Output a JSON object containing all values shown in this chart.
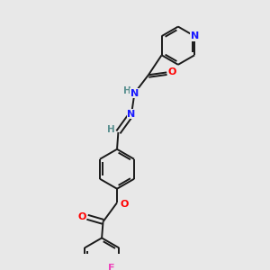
{
  "bg_color": "#e8e8e8",
  "bond_color": "#1a1a1a",
  "N_color": "#1a1aff",
  "O_color": "#ff0000",
  "F_color": "#ee44bb",
  "H_color": "#5a9090",
  "line_width": 1.4,
  "figsize": [
    3.0,
    3.0
  ],
  "dpi": 100,
  "xlim": [
    0,
    10
  ],
  "ylim": [
    0,
    10
  ]
}
